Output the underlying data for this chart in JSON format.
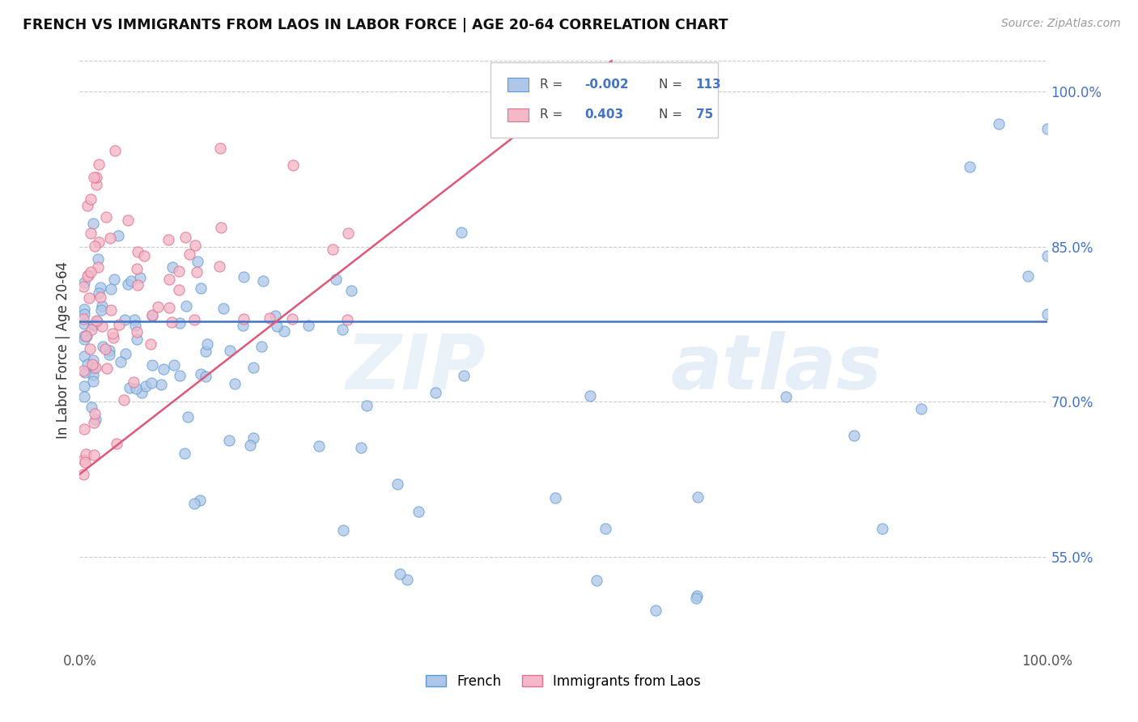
{
  "title": "FRENCH VS IMMIGRANTS FROM LAOS IN LABOR FORCE | AGE 20-64 CORRELATION CHART",
  "source": "Source: ZipAtlas.com",
  "ylabel": "In Labor Force | Age 20-64",
  "blue_R": -0.002,
  "blue_N": 113,
  "pink_R": 0.403,
  "pink_N": 75,
  "blue_color": "#aec6e8",
  "pink_color": "#f4b8c8",
  "blue_edge_color": "#5b9bd5",
  "pink_edge_color": "#e07090",
  "blue_line_color": "#4472c4",
  "pink_line_color": "#e05878",
  "legend_label_blue": "French",
  "legend_label_pink": "Immigrants from Laos",
  "xmin": 0.0,
  "xmax": 1.0,
  "ymin": 0.46,
  "ymax": 1.04,
  "blue_line_y": 0.778,
  "pink_line_x0": 0.0,
  "pink_line_y0": 0.63,
  "pink_line_x1": 0.55,
  "pink_line_y1": 1.03,
  "yticks": [
    0.55,
    0.7,
    0.85,
    1.0
  ],
  "ytick_labels": [
    "55.0%",
    "70.0%",
    "85.0%",
    "100.0%"
  ],
  "watermark_zip": "ZIP",
  "watermark_atlas": "atlas"
}
